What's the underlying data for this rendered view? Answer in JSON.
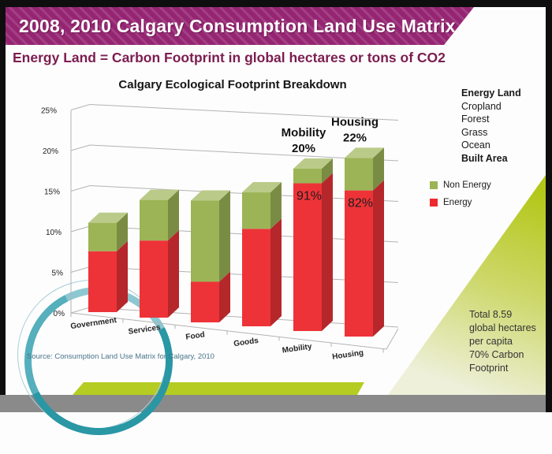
{
  "slide": {
    "title": "2008, 2010 Calgary Consumption Land Use Matrix",
    "subtitle": "Energy Land = Carbon Footprint in global hectares or tons of CO2",
    "source": "Source: Consumption Land Use Matrix for Calgary, 2010",
    "colors": {
      "banner": "#952572",
      "subtitle": "#7b1d50",
      "teal": "#2a97a5",
      "accent": "#b5cd22",
      "footer": "#8a8a8a"
    }
  },
  "chart_data": {
    "type": "bar",
    "variant": "3d-stacked-column",
    "title": "Calgary Ecological Footprint Breakdown",
    "categories": [
      "Government",
      "Services",
      "Food",
      "Goods",
      "Mobility",
      "Housing"
    ],
    "series": [
      {
        "name": "Energy",
        "color": "#ee3338",
        "values": [
          7.5,
          9.5,
          5,
          12,
          18.2,
          18
        ]
      },
      {
        "name": "Non Energy",
        "color": "#9cb456",
        "values": [
          3.5,
          5,
          10,
          4.5,
          1.8,
          4
        ]
      }
    ],
    "y_ticks": [
      "0%",
      "5%",
      "10%",
      "15%",
      "20%",
      "25%"
    ],
    "ylim": [
      0,
      25
    ],
    "grid": true,
    "legend_position": "right",
    "annotations": [
      {
        "type": "total-label",
        "target": "Mobility",
        "lines": [
          "Mobility",
          "20%"
        ]
      },
      {
        "type": "total-label",
        "target": "Housing",
        "lines": [
          "Housing",
          "22%"
        ]
      },
      {
        "type": "segment-label",
        "target": "Mobility",
        "text": "91%"
      },
      {
        "type": "segment-label",
        "target": "Housing",
        "text": "82%"
      }
    ]
  },
  "side_panel": {
    "land_types": [
      {
        "label": "Energy Land",
        "bold": true
      },
      {
        "label": "Cropland",
        "bold": false
      },
      {
        "label": "Forest",
        "bold": false
      },
      {
        "label": "Grass",
        "bold": false
      },
      {
        "label": "Ocean",
        "bold": false
      },
      {
        "label": "Built Area",
        "bold": true
      }
    ],
    "legend": [
      {
        "label": "Non Energy",
        "color": "#9cb456"
      },
      {
        "label": "Energy",
        "color": "#ee2a2e"
      }
    ]
  },
  "callout": {
    "lines": [
      "Total 8.59",
      "global hectares",
      "per capita",
      "70% Carbon",
      "Footprint"
    ]
  }
}
